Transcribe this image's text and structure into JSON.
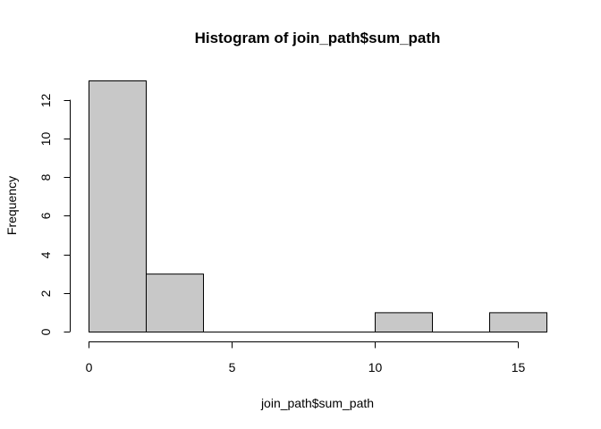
{
  "chart_data": {
    "type": "bar",
    "title": "Histogram of join_path$sum_path",
    "xlabel": "join_path$sum_path",
    "ylabel": "Frequency",
    "bins": [
      {
        "start": 0,
        "end": 2,
        "count": 13
      },
      {
        "start": 2,
        "end": 4,
        "count": 3
      },
      {
        "start": 4,
        "end": 6,
        "count": 0
      },
      {
        "start": 6,
        "end": 8,
        "count": 0
      },
      {
        "start": 8,
        "end": 10,
        "count": 0
      },
      {
        "start": 10,
        "end": 12,
        "count": 1
      },
      {
        "start": 12,
        "end": 14,
        "count": 0
      },
      {
        "start": 14,
        "end": 16,
        "count": 1
      }
    ],
    "x_ticks": [
      0,
      5,
      10,
      15
    ],
    "y_ticks": [
      0,
      2,
      4,
      6,
      8,
      10,
      12
    ],
    "xlim": [
      0,
      16
    ],
    "ylim": [
      0,
      13
    ],
    "grid": false,
    "bar_color": "#c8c8c8",
    "edge_color": "#000000"
  }
}
